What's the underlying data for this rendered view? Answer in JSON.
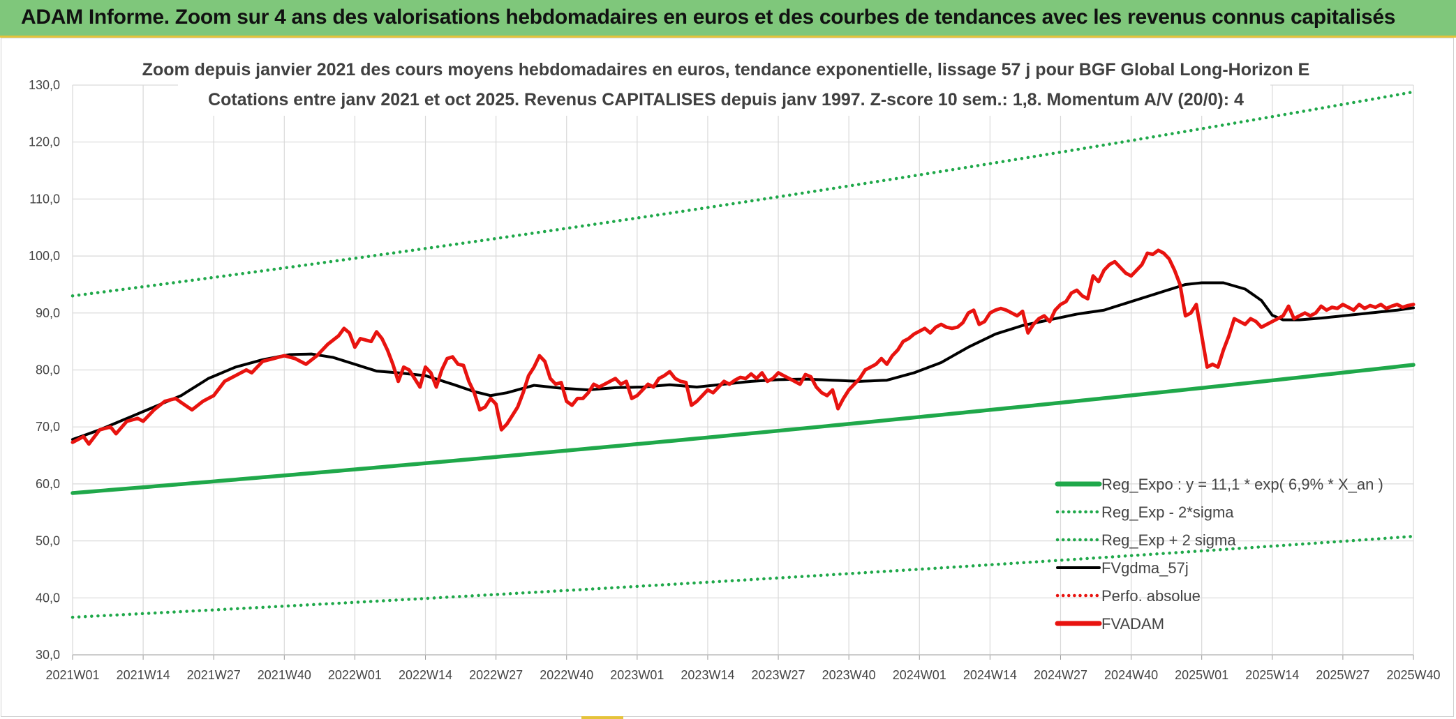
{
  "banner": {
    "title": "ADAM Informe. Zoom sur 4 ans des valorisations hebdomadaires en euros et des courbes de tendances avec les revenus connus capitalisés"
  },
  "colors": {
    "banner_bg": "#7fc77b",
    "accent": "#e5c33a",
    "reg_green": "#1fa84a",
    "price_red": "#e8130f",
    "avg_black": "#000000",
    "grid": "#d9d9d9"
  },
  "chart_data": {
    "type": "line",
    "title": "Zoom depuis janvier 2021 des cours moyens hebdomadaires en euros, tendance exponentielle, lissage 57 j pour BGF Global Long-Horizon E",
    "subtitle": "Cotations entre janv 2021 et oct 2025. Revenus CAPITALISES depuis janv 1997. Z-score 10 sem.: 1,8. Momentum A/V (20/0): 4",
    "xlabel": "",
    "ylabel": "",
    "ylim": [
      30,
      130
    ],
    "yticks": [
      "30,0",
      "40,0",
      "50,0",
      "60,0",
      "70,0",
      "80,0",
      "90,0",
      "100,0",
      "110,0",
      "120,0",
      "130,0"
    ],
    "week_count": 247,
    "x_ticks": [
      {
        "label": "2021W01",
        "i": 0
      },
      {
        "label": "2021W14",
        "i": 13
      },
      {
        "label": "2021W27",
        "i": 26
      },
      {
        "label": "2021W40",
        "i": 39
      },
      {
        "label": "2022W01",
        "i": 52
      },
      {
        "label": "2022W14",
        "i": 65
      },
      {
        "label": "2022W27",
        "i": 78
      },
      {
        "label": "2022W40",
        "i": 91
      },
      {
        "label": "2023W01",
        "i": 104
      },
      {
        "label": "2023W14",
        "i": 117
      },
      {
        "label": "2023W27",
        "i": 130
      },
      {
        "label": "2023W40",
        "i": 143
      },
      {
        "label": "2024W01",
        "i": 156
      },
      {
        "label": "2024W14",
        "i": 169
      },
      {
        "label": "2024W27",
        "i": 182
      },
      {
        "label": "2024W40",
        "i": 195
      },
      {
        "label": "2025W01",
        "i": 208
      },
      {
        "label": "2025W14",
        "i": 221
      },
      {
        "label": "2025W27",
        "i": 234
      },
      {
        "label": "2025W40",
        "i": 247
      }
    ],
    "grid": true,
    "legend_position": "bottom-right",
    "series": [
      {
        "name": "Reg_Expo : y = 11,1 * exp( 6,9% *  X_an )",
        "style": "solid",
        "color": "#1fa84a",
        "type": "exp",
        "y_start": 58.4,
        "y_end": 80.9
      },
      {
        "name": "Reg_Exp - 2*sigma",
        "style": "dotted",
        "color": "#1fa84a",
        "type": "exp",
        "y_start": 36.6,
        "y_end": 50.8
      },
      {
        "name": "Reg_Exp + 2 sigma",
        "style": "dotted",
        "color": "#1fa84a",
        "type": "exp",
        "y_start": 93.0,
        "y_end": 128.8
      },
      {
        "name": "FVgdma_57j",
        "style": "solid",
        "color": "#000000",
        "type": "anchors",
        "points": [
          [
            0,
            67.8
          ],
          [
            5,
            69.5
          ],
          [
            10,
            71.5
          ],
          [
            15,
            73.5
          ],
          [
            20,
            75.5
          ],
          [
            25,
            78.5
          ],
          [
            30,
            80.5
          ],
          [
            35,
            81.8
          ],
          [
            40,
            82.7
          ],
          [
            44,
            82.8
          ],
          [
            48,
            82.2
          ],
          [
            52,
            81.0
          ],
          [
            56,
            79.8
          ],
          [
            60,
            79.5
          ],
          [
            65,
            79.0
          ],
          [
            70,
            77.5
          ],
          [
            74,
            76.2
          ],
          [
            77,
            75.5
          ],
          [
            80,
            76.0
          ],
          [
            85,
            77.3
          ],
          [
            90,
            76.8
          ],
          [
            95,
            76.5
          ],
          [
            100,
            76.9
          ],
          [
            105,
            77.0
          ],
          [
            110,
            77.4
          ],
          [
            115,
            77.0
          ],
          [
            120,
            77.5
          ],
          [
            125,
            78.0
          ],
          [
            130,
            78.3
          ],
          [
            135,
            78.4
          ],
          [
            140,
            78.2
          ],
          [
            145,
            78.0
          ],
          [
            150,
            78.2
          ],
          [
            155,
            79.5
          ],
          [
            160,
            81.3
          ],
          [
            165,
            84.0
          ],
          [
            170,
            86.3
          ],
          [
            175,
            87.8
          ],
          [
            180,
            88.8
          ],
          [
            185,
            89.8
          ],
          [
            190,
            90.5
          ],
          [
            195,
            92.0
          ],
          [
            200,
            93.5
          ],
          [
            205,
            95.0
          ],
          [
            208,
            95.3
          ],
          [
            212,
            95.3
          ],
          [
            216,
            94.2
          ],
          [
            219,
            92.2
          ],
          [
            221,
            89.6
          ],
          [
            223,
            88.8
          ],
          [
            226,
            88.8
          ],
          [
            230,
            89.1
          ],
          [
            235,
            89.6
          ],
          [
            240,
            90.1
          ],
          [
            244,
            90.5
          ],
          [
            247,
            90.9
          ]
        ]
      },
      {
        "name": "Perfo. absolue",
        "style": "dotted",
        "color": "#e8130f",
        "type": "legend-only"
      },
      {
        "name": "FVADAM",
        "style": "solid",
        "color": "#e8130f",
        "type": "anchors",
        "points": [
          [
            0,
            67.3
          ],
          [
            2,
            68.3
          ],
          [
            3,
            67.0
          ],
          [
            5,
            69.5
          ],
          [
            7,
            70.0
          ],
          [
            8,
            68.8
          ],
          [
            10,
            71.0
          ],
          [
            12,
            71.5
          ],
          [
            13,
            71.0
          ],
          [
            15,
            73.0
          ],
          [
            17,
            74.5
          ],
          [
            19,
            75.0
          ],
          [
            20,
            74.3
          ],
          [
            22,
            73.0
          ],
          [
            24,
            74.5
          ],
          [
            26,
            75.5
          ],
          [
            28,
            78.0
          ],
          [
            30,
            79.0
          ],
          [
            32,
            80.0
          ],
          [
            33,
            79.5
          ],
          [
            35,
            81.5
          ],
          [
            37,
            82.0
          ],
          [
            39,
            82.5
          ],
          [
            41,
            82.0
          ],
          [
            43,
            81.0
          ],
          [
            45,
            82.5
          ],
          [
            47,
            84.5
          ],
          [
            49,
            86.0
          ],
          [
            50,
            87.3
          ],
          [
            51,
            86.5
          ],
          [
            52,
            84.0
          ],
          [
            53,
            85.5
          ],
          [
            55,
            85.0
          ],
          [
            56,
            86.7
          ],
          [
            57,
            85.5
          ],
          [
            58,
            83.5
          ],
          [
            59,
            81.0
          ],
          [
            60,
            78.0
          ],
          [
            61,
            80.5
          ],
          [
            62,
            80.0
          ],
          [
            63,
            78.5
          ],
          [
            64,
            77.0
          ],
          [
            65,
            80.5
          ],
          [
            66,
            79.5
          ],
          [
            67,
            77.0
          ],
          [
            68,
            80.0
          ],
          [
            69,
            82.0
          ],
          [
            70,
            82.3
          ],
          [
            71,
            81.0
          ],
          [
            72,
            80.8
          ],
          [
            73,
            78.0
          ],
          [
            74,
            76.0
          ],
          [
            75,
            73.0
          ],
          [
            76,
            73.5
          ],
          [
            77,
            75.0
          ],
          [
            78,
            74.0
          ],
          [
            79,
            69.5
          ],
          [
            80,
            70.5
          ],
          [
            81,
            72.0
          ],
          [
            82,
            73.5
          ],
          [
            83,
            76.0
          ],
          [
            84,
            79.0
          ],
          [
            85,
            80.5
          ],
          [
            86,
            82.5
          ],
          [
            87,
            81.5
          ],
          [
            88,
            78.5
          ],
          [
            89,
            77.5
          ],
          [
            90,
            77.8
          ],
          [
            91,
            74.5
          ],
          [
            92,
            73.8
          ],
          [
            93,
            75.0
          ],
          [
            94,
            75.0
          ],
          [
            95,
            76.0
          ],
          [
            96,
            77.5
          ],
          [
            97,
            77.0
          ],
          [
            98,
            77.5
          ],
          [
            99,
            78.0
          ],
          [
            100,
            78.5
          ],
          [
            101,
            77.5
          ],
          [
            102,
            78.0
          ],
          [
            103,
            75.0
          ],
          [
            104,
            75.5
          ],
          [
            105,
            76.5
          ],
          [
            106,
            77.5
          ],
          [
            107,
            77.0
          ],
          [
            108,
            78.5
          ],
          [
            109,
            79.0
          ],
          [
            110,
            79.7
          ],
          [
            111,
            78.5
          ],
          [
            112,
            78.0
          ],
          [
            113,
            77.8
          ],
          [
            114,
            73.8
          ],
          [
            115,
            74.5
          ],
          [
            116,
            75.5
          ],
          [
            117,
            76.5
          ],
          [
            118,
            76.0
          ],
          [
            119,
            77.0
          ],
          [
            120,
            78.0
          ],
          [
            121,
            77.5
          ],
          [
            122,
            78.2
          ],
          [
            123,
            78.7
          ],
          [
            124,
            78.5
          ],
          [
            125,
            79.3
          ],
          [
            126,
            78.5
          ],
          [
            127,
            79.5
          ],
          [
            128,
            78.0
          ],
          [
            129,
            78.5
          ],
          [
            130,
            79.5
          ],
          [
            131,
            79.0
          ],
          [
            132,
            78.5
          ],
          [
            133,
            78.0
          ],
          [
            134,
            77.5
          ],
          [
            135,
            79.2
          ],
          [
            136,
            78.8
          ],
          [
            137,
            77.0
          ],
          [
            138,
            76.0
          ],
          [
            139,
            75.5
          ],
          [
            140,
            76.5
          ],
          [
            141,
            73.2
          ],
          [
            142,
            75.0
          ],
          [
            143,
            76.5
          ],
          [
            144,
            77.5
          ],
          [
            145,
            78.5
          ],
          [
            146,
            80.0
          ],
          [
            147,
            80.5
          ],
          [
            148,
            81.0
          ],
          [
            149,
            82.0
          ],
          [
            150,
            81.0
          ],
          [
            151,
            82.5
          ],
          [
            152,
            83.5
          ],
          [
            153,
            85.0
          ],
          [
            154,
            85.5
          ],
          [
            155,
            86.3
          ],
          [
            156,
            86.8
          ],
          [
            157,
            87.3
          ],
          [
            158,
            86.5
          ],
          [
            159,
            87.5
          ],
          [
            160,
            88.0
          ],
          [
            161,
            87.5
          ],
          [
            162,
            87.3
          ],
          [
            163,
            87.5
          ],
          [
            164,
            88.3
          ],
          [
            165,
            90.0
          ],
          [
            166,
            90.5
          ],
          [
            167,
            88.0
          ],
          [
            168,
            88.5
          ],
          [
            169,
            90.0
          ],
          [
            170,
            90.5
          ],
          [
            171,
            90.8
          ],
          [
            172,
            90.5
          ],
          [
            173,
            90.0
          ],
          [
            174,
            89.5
          ],
          [
            175,
            90.3
          ],
          [
            176,
            86.5
          ],
          [
            177,
            88.0
          ],
          [
            178,
            89.0
          ],
          [
            179,
            89.5
          ],
          [
            180,
            88.5
          ],
          [
            181,
            90.5
          ],
          [
            182,
            91.5
          ],
          [
            183,
            92.0
          ],
          [
            184,
            93.5
          ],
          [
            185,
            94.0
          ],
          [
            186,
            93.0
          ],
          [
            187,
            92.5
          ],
          [
            188,
            96.5
          ],
          [
            189,
            95.5
          ],
          [
            190,
            97.5
          ],
          [
            191,
            98.5
          ],
          [
            192,
            99.0
          ],
          [
            193,
            98.0
          ],
          [
            194,
            97.0
          ],
          [
            195,
            96.5
          ],
          [
            196,
            97.5
          ],
          [
            197,
            98.5
          ],
          [
            198,
            100.5
          ],
          [
            199,
            100.3
          ],
          [
            200,
            101.0
          ],
          [
            201,
            100.5
          ],
          [
            202,
            99.5
          ],
          [
            203,
            97.5
          ],
          [
            204,
            95.0
          ],
          [
            205,
            89.5
          ],
          [
            206,
            90.0
          ],
          [
            207,
            91.5
          ],
          [
            208,
            86.0
          ],
          [
            209,
            80.5
          ],
          [
            210,
            81.0
          ],
          [
            211,
            80.5
          ],
          [
            212,
            83.5
          ],
          [
            213,
            86.0
          ],
          [
            214,
            89.0
          ],
          [
            215,
            88.5
          ],
          [
            216,
            88.0
          ],
          [
            217,
            89.0
          ],
          [
            218,
            88.5
          ],
          [
            219,
            87.5
          ],
          [
            220,
            88.0
          ],
          [
            221,
            88.5
          ],
          [
            222,
            89.0
          ],
          [
            223,
            89.5
          ],
          [
            224,
            91.2
          ],
          [
            225,
            89.0
          ],
          [
            226,
            89.5
          ],
          [
            227,
            90.0
          ],
          [
            228,
            89.5
          ],
          [
            229,
            90.0
          ],
          [
            230,
            91.2
          ],
          [
            231,
            90.5
          ],
          [
            232,
            91.0
          ],
          [
            233,
            90.8
          ],
          [
            234,
            91.5
          ],
          [
            235,
            91.0
          ],
          [
            236,
            90.5
          ],
          [
            237,
            91.5
          ],
          [
            238,
            90.8
          ],
          [
            239,
            91.3
          ],
          [
            240,
            91.0
          ],
          [
            241,
            91.5
          ],
          [
            242,
            90.8
          ],
          [
            243,
            91.2
          ],
          [
            244,
            91.5
          ],
          [
            245,
            91.0
          ],
          [
            246,
            91.3
          ],
          [
            247,
            91.5
          ]
        ]
      }
    ]
  }
}
